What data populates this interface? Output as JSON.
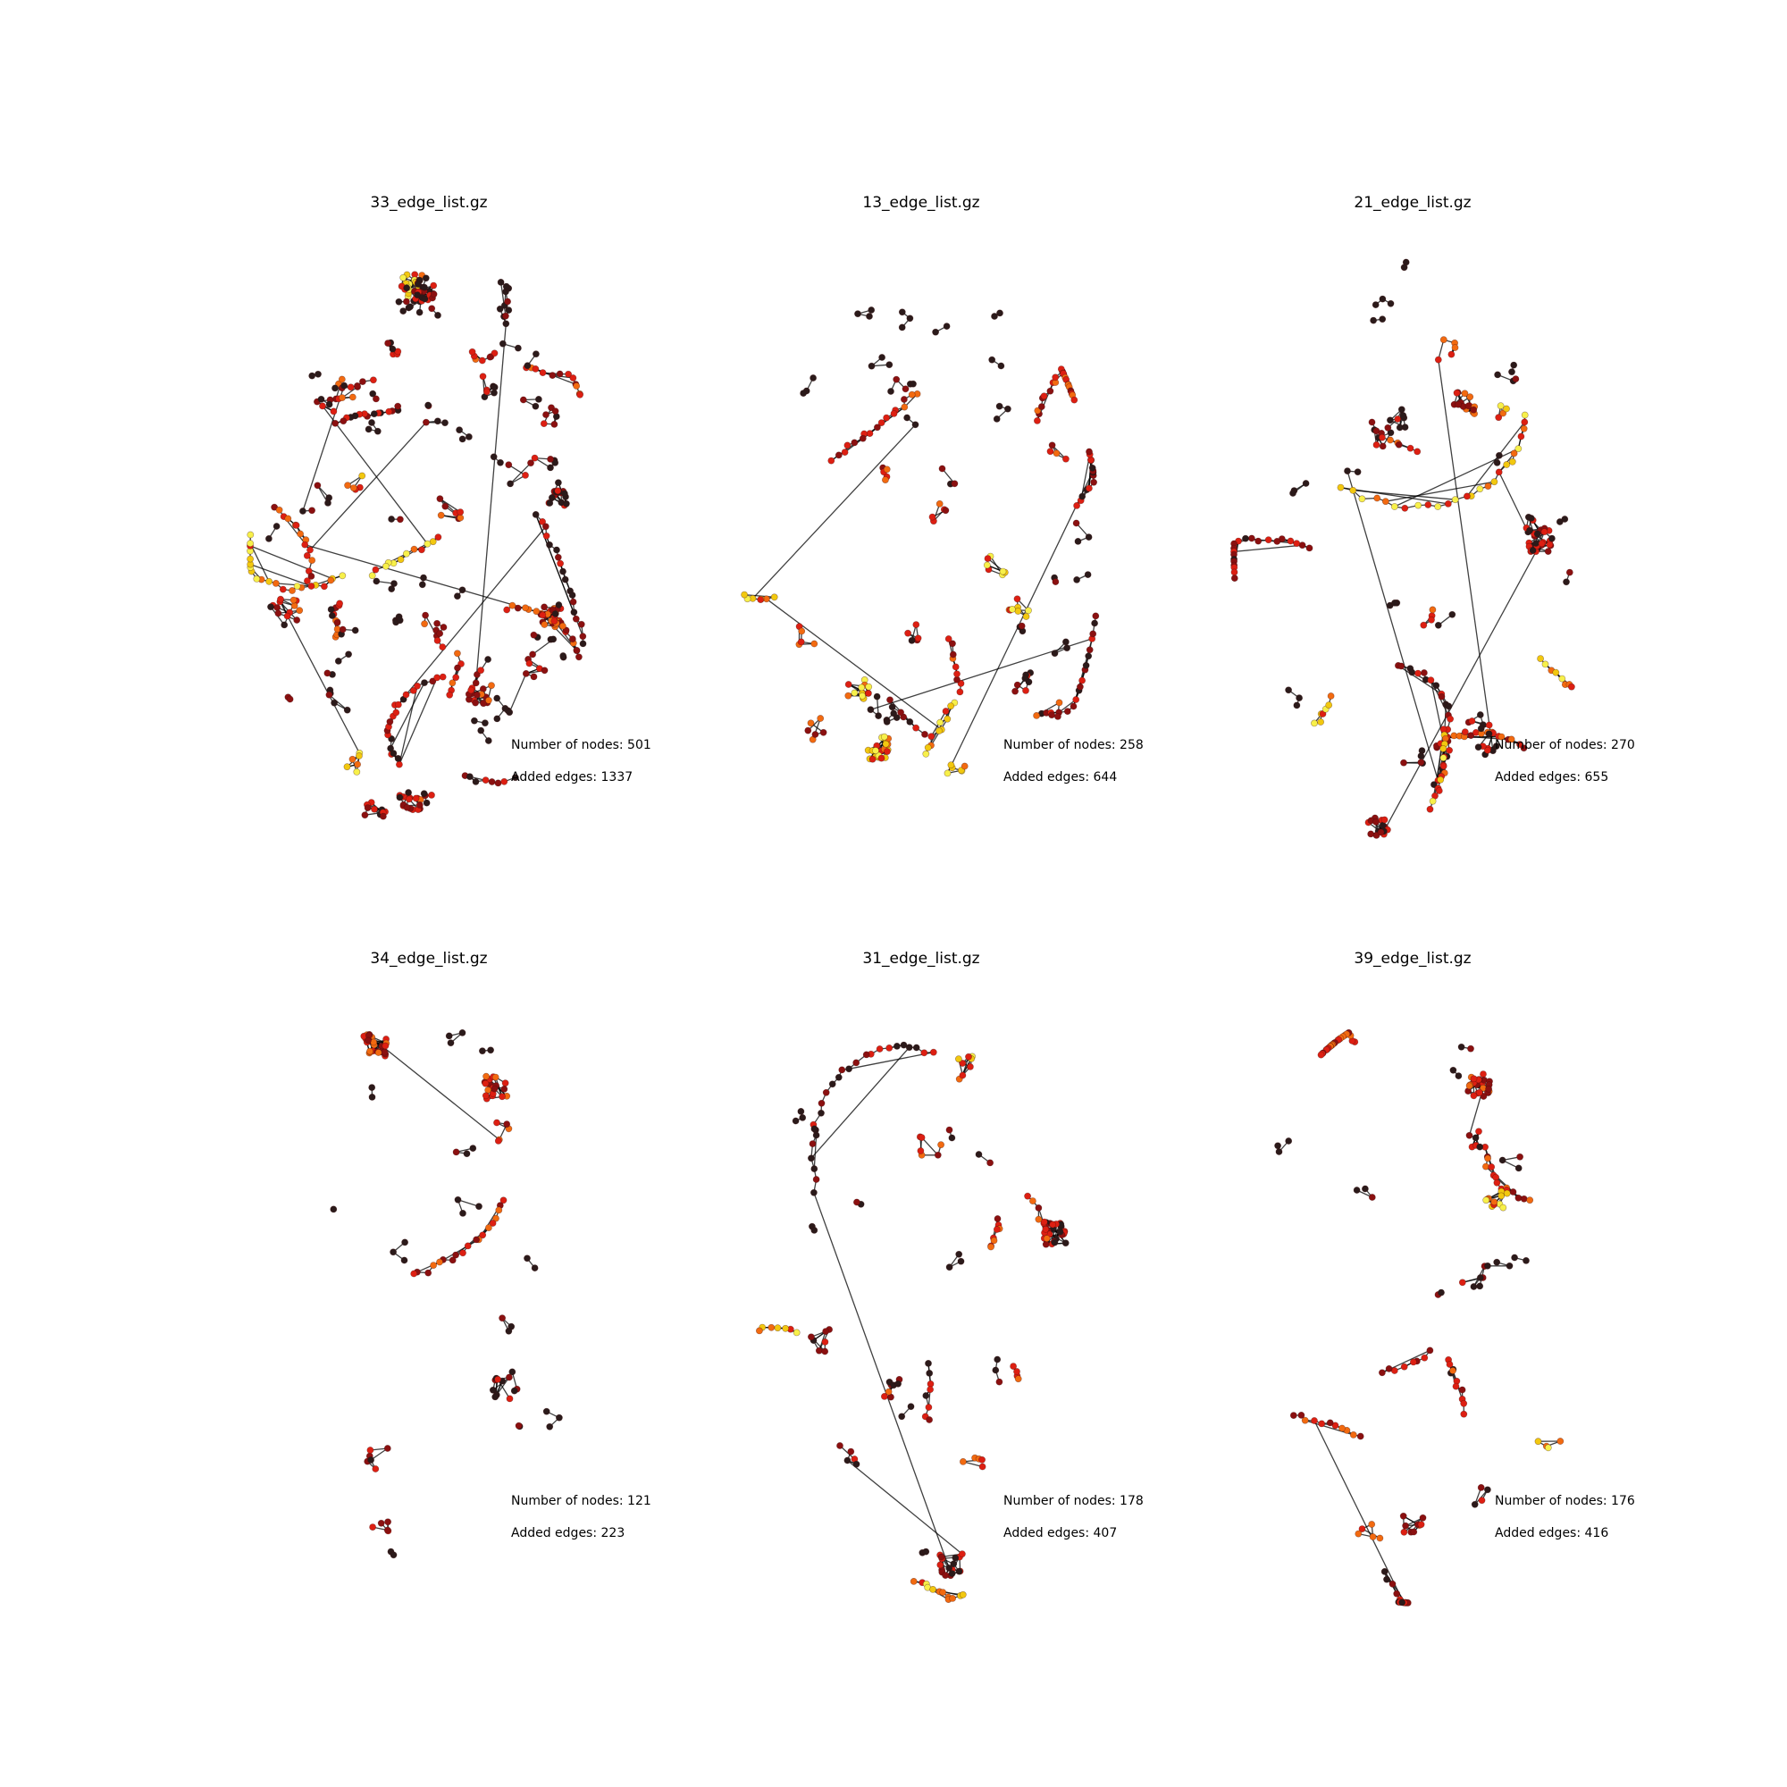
{
  "figure": {
    "background": "#ffffff",
    "node_colormap": [
      "#2b1a1a",
      "#8b1010",
      "#dd1f12",
      "#f26a10",
      "#f2c80f",
      "#f7f04a"
    ],
    "edge_color": "#000000",
    "panels": [
      {
        "title": "33_edge_list.gz",
        "nodes_label": "Number of nodes: 501",
        "edges_label": "Added edges: 1337",
        "num_nodes": 501,
        "added_edges": 1337
      },
      {
        "title": "13_edge_list.gz",
        "nodes_label": "Number of nodes: 258",
        "edges_label": "Added edges: 644",
        "num_nodes": 258,
        "added_edges": 644
      },
      {
        "title": "21_edge_list.gz",
        "nodes_label": "Number of nodes: 270",
        "edges_label": "Added edges: 655",
        "num_nodes": 270,
        "added_edges": 655
      },
      {
        "title": "34_edge_list.gz",
        "nodes_label": "Number of nodes: 121",
        "edges_label": "Added edges: 223",
        "num_nodes": 121,
        "added_edges": 223
      },
      {
        "title": "31_edge_list.gz",
        "nodes_label": "Number of nodes: 178",
        "edges_label": "Added edges: 407",
        "num_nodes": 178,
        "added_edges": 407
      },
      {
        "title": "39_edge_list.gz",
        "nodes_label": "Number of nodes: 176",
        "edges_label": "Added edges: 416",
        "num_nodes": 176,
        "added_edges": 416
      }
    ]
  }
}
